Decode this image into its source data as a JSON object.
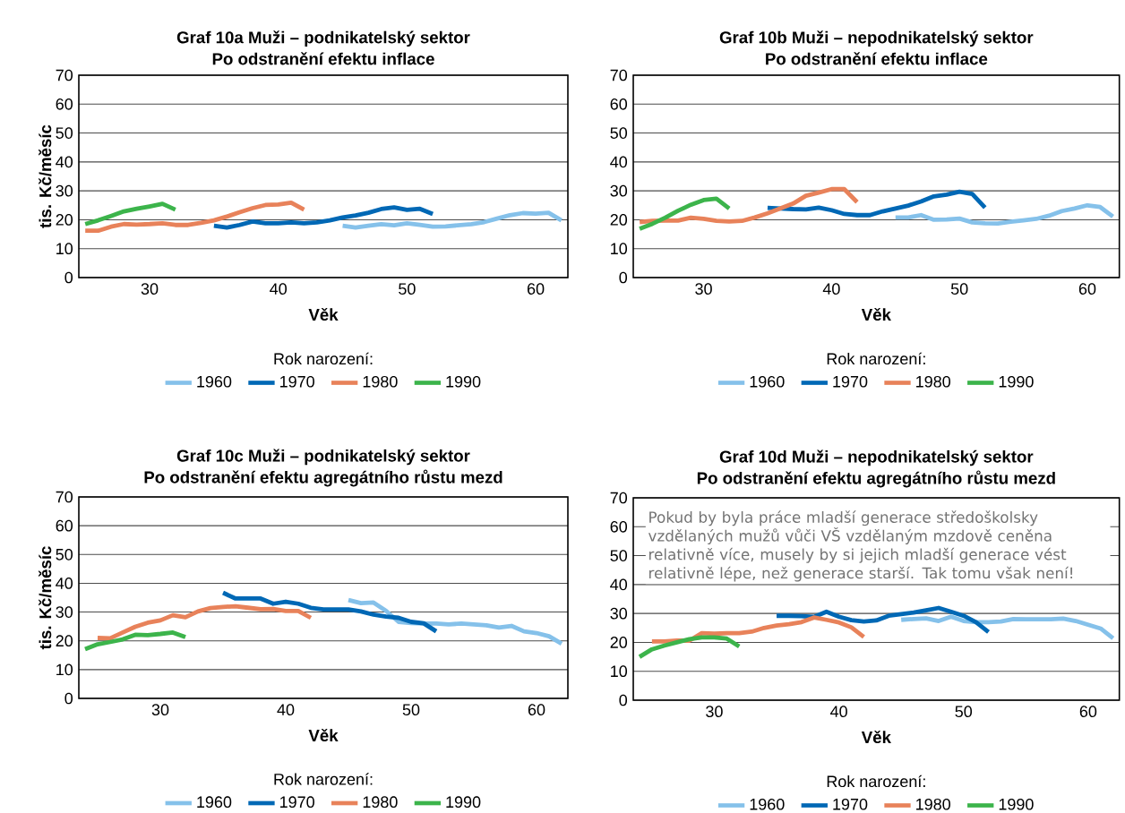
{
  "chart_data": [
    {
      "type": "line",
      "title": "Graf 10a  Muži – podnikatelský sektor",
      "subtitle": "Po odstranění efektu inflace",
      "xlabel": "Věk",
      "ylabel": "tis. Kč/měsíc",
      "legend_title": "Rok narození:",
      "legend": "bottom",
      "grid": "y",
      "xlim": [
        24.5,
        62.5
      ],
      "xticks": [
        30,
        40,
        50,
        60
      ],
      "ylim": [
        0,
        70
      ],
      "yticks": [
        0,
        10,
        20,
        30,
        40,
        50,
        60,
        70
      ],
      "series": [
        {
          "name": "1960",
          "color": "#85c1ea",
          "x": [
            45,
            46,
            47,
            48,
            49,
            50,
            51,
            52,
            53,
            54,
            55,
            56,
            57,
            58,
            59,
            60,
            61,
            62
          ],
          "values": [
            17.9,
            17.3,
            17.9,
            18.5,
            18.1,
            18.8,
            18.2,
            17.6,
            17.7,
            18.1,
            18.5,
            19.2,
            20.4,
            21.6,
            22.3,
            22.1,
            22.4,
            19.8
          ]
        },
        {
          "name": "1970",
          "color": "#0068b5",
          "x": [
            35,
            36,
            37,
            38,
            39,
            40,
            41,
            42,
            43,
            44,
            45,
            46,
            47,
            48,
            49,
            50,
            51,
            52
          ],
          "values": [
            17.9,
            17.3,
            18.2,
            19.4,
            18.8,
            18.8,
            19.1,
            18.8,
            19.1,
            19.8,
            20.8,
            21.5,
            22.4,
            23.7,
            24.3,
            23.4,
            23.8,
            22.0
          ]
        },
        {
          "name": "1980",
          "color": "#e8825a",
          "x": [
            25,
            26,
            27,
            28,
            29,
            30,
            31,
            32,
            33,
            34,
            35,
            36,
            37,
            38,
            39,
            40,
            41,
            42
          ],
          "values": [
            16.2,
            16.2,
            17.6,
            18.5,
            18.3,
            18.5,
            18.8,
            18.2,
            18.2,
            18.9,
            19.8,
            21.1,
            22.6,
            24.0,
            25.1,
            25.3,
            25.9,
            23.5
          ]
        },
        {
          "name": "1990",
          "color": "#3cb44b",
          "x": [
            25,
            26,
            27,
            28,
            29,
            30,
            31,
            32
          ],
          "values": [
            18.5,
            19.8,
            21.3,
            22.9,
            23.8,
            24.6,
            25.5,
            23.5
          ]
        }
      ]
    },
    {
      "type": "line",
      "title": "Graf 10b  Muži – nepodnikatelský sektor",
      "subtitle": "Po odstranění efektu inflace",
      "xlabel": "Věk",
      "legend_title": "Rok narození:",
      "legend": "bottom",
      "grid": "y",
      "xlim": [
        24.5,
        62.5
      ],
      "xticks": [
        30,
        40,
        50,
        60
      ],
      "ylim": [
        0,
        70
      ],
      "yticks": [
        0,
        10,
        20,
        30,
        40,
        50,
        60,
        70
      ],
      "series": [
        {
          "name": "1960",
          "color": "#85c1ea",
          "x": [
            45,
            46,
            47,
            48,
            49,
            50,
            51,
            52,
            53,
            54,
            55,
            56,
            57,
            58,
            59,
            60,
            61,
            62
          ],
          "values": [
            20.8,
            20.8,
            21.6,
            20.0,
            20.1,
            20.4,
            19.1,
            18.8,
            18.7,
            19.3,
            19.8,
            20.3,
            21.4,
            23.0,
            23.9,
            25.0,
            24.4,
            21.1
          ]
        },
        {
          "name": "1970",
          "color": "#0068b5",
          "x": [
            35,
            36,
            37,
            38,
            39,
            40,
            41,
            42,
            43,
            44,
            45,
            46,
            47,
            48,
            49,
            50,
            51,
            52
          ],
          "values": [
            24.1,
            23.9,
            23.7,
            23.6,
            24.2,
            23.3,
            22.0,
            21.6,
            21.6,
            22.9,
            23.9,
            24.9,
            26.3,
            28.1,
            28.7,
            29.7,
            28.9,
            24.2
          ]
        },
        {
          "name": "1980",
          "color": "#e8825a",
          "x": [
            25,
            26,
            27,
            28,
            29,
            30,
            31,
            32,
            33,
            34,
            35,
            36,
            37,
            38,
            39,
            40,
            41,
            42
          ],
          "values": [
            19.2,
            19.6,
            19.7,
            19.7,
            20.7,
            20.3,
            19.6,
            19.4,
            19.6,
            20.8,
            22.2,
            23.9,
            25.6,
            28.3,
            29.4,
            30.6,
            30.6,
            26.1
          ]
        },
        {
          "name": "1990",
          "color": "#3cb44b",
          "x": [
            25,
            26,
            27,
            28,
            29,
            30,
            31,
            32
          ],
          "values": [
            16.9,
            18.6,
            20.7,
            23.1,
            25.2,
            26.8,
            27.3,
            23.9
          ]
        }
      ]
    },
    {
      "type": "line",
      "title": "Graf 10c  Muži – podnikatelský sektor",
      "subtitle": "Po odstranění efektu agregátního růstu mezd",
      "xlabel": "Věk",
      "ylabel": "tis. Kč/měsíc",
      "legend_title": "Rok narození:",
      "legend": "bottom",
      "grid": "y",
      "xlim": [
        23.5,
        62.5
      ],
      "xticks": [
        30,
        40,
        50,
        60
      ],
      "ylim": [
        0,
        70
      ],
      "yticks": [
        0,
        10,
        20,
        30,
        40,
        50,
        60,
        70
      ],
      "series": [
        {
          "name": "1960",
          "color": "#85c1ea",
          "x": [
            45,
            46,
            47,
            48,
            49,
            50,
            51,
            52,
            53,
            54,
            55,
            56,
            57,
            58,
            59,
            60,
            61,
            62
          ],
          "values": [
            34.2,
            33.1,
            33.3,
            30.4,
            26.6,
            26.2,
            26.0,
            26.0,
            25.7,
            26.0,
            25.7,
            25.4,
            24.6,
            25.2,
            23.3,
            22.7,
            21.6,
            19.0
          ]
        },
        {
          "name": "1970",
          "color": "#0068b5",
          "x": [
            35,
            36,
            37,
            38,
            39,
            40,
            41,
            42,
            43,
            44,
            45,
            46,
            47,
            48,
            49,
            50,
            51,
            52
          ],
          "values": [
            36.7,
            34.7,
            34.7,
            34.7,
            32.9,
            33.6,
            32.9,
            31.5,
            30.9,
            30.9,
            30.9,
            30.2,
            29.1,
            28.4,
            28.0,
            26.6,
            26.1,
            23.3
          ]
        },
        {
          "name": "1980",
          "color": "#e8825a",
          "x": [
            25,
            26,
            27,
            28,
            29,
            30,
            31,
            32,
            33,
            34,
            35,
            36,
            37,
            38,
            39,
            40,
            41,
            42
          ],
          "values": [
            21.0,
            20.9,
            22.9,
            24.9,
            26.3,
            27.1,
            28.9,
            28.2,
            30.2,
            31.4,
            31.8,
            32.0,
            31.5,
            31.0,
            31.1,
            30.4,
            30.4,
            28.0
          ]
        },
        {
          "name": "1990",
          "color": "#3cb44b",
          "x": [
            24,
            25,
            26,
            27,
            28,
            29,
            30,
            31,
            32
          ],
          "values": [
            17.1,
            18.8,
            19.6,
            20.5,
            22.1,
            22.0,
            22.4,
            22.9,
            21.3
          ]
        }
      ]
    },
    {
      "type": "line",
      "title": "Graf 10d  Muži – nepodnikatelský sektor",
      "subtitle": "Po odstranění efektu agregátního růstu mezd",
      "xlabel": "Věk",
      "legend_title": "Rok narození:",
      "legend": "bottom",
      "grid": "y",
      "xlim": [
        23.5,
        62.5
      ],
      "xticks": [
        30,
        40,
        50,
        60
      ],
      "ylim": [
        0,
        70
      ],
      "yticks": [
        0,
        10,
        20,
        30,
        40,
        50,
        60,
        70
      ],
      "annotations": [
        "Pokud by byla práce mladší generace středoškolsky vzdělaných mužů vůči VŠ vzdělaným mzdově ceněna relativně více, musely by si jejich mladší generace vést relativně lépe, než generace starší. Tak tomu však není!"
      ],
      "series": [
        {
          "name": "1960",
          "color": "#85c1ea",
          "x": [
            45,
            46,
            47,
            48,
            49,
            50,
            51,
            52,
            53,
            54,
            55,
            56,
            57,
            58,
            59,
            60,
            61,
            62
          ],
          "values": [
            27.8,
            28.1,
            28.3,
            27.4,
            28.9,
            27.4,
            27.0,
            27.0,
            27.2,
            28.1,
            28.0,
            28.0,
            28.0,
            28.2,
            27.4,
            26.1,
            24.8,
            21.4
          ]
        },
        {
          "name": "1970",
          "color": "#0068b5",
          "x": [
            35,
            36,
            37,
            38,
            39,
            40,
            41,
            42,
            43,
            44,
            45,
            46,
            47,
            48,
            49,
            50,
            51,
            52
          ],
          "values": [
            29.2,
            29.2,
            29.1,
            28.8,
            30.6,
            28.9,
            27.7,
            27.2,
            27.6,
            29.2,
            29.8,
            30.3,
            31.1,
            31.9,
            30.6,
            29.2,
            27.0,
            23.6
          ]
        },
        {
          "name": "1980",
          "color": "#e8825a",
          "x": [
            25,
            26,
            27,
            28,
            29,
            30,
            31,
            32,
            33,
            34,
            35,
            36,
            37,
            38,
            39,
            40,
            41,
            42
          ],
          "values": [
            20.3,
            20.3,
            20.6,
            20.6,
            23.2,
            23.0,
            23.2,
            23.2,
            23.7,
            25.0,
            25.8,
            26.3,
            27.0,
            28.6,
            27.8,
            26.9,
            25.2,
            21.9
          ]
        },
        {
          "name": "1990",
          "color": "#3cb44b",
          "x": [
            24,
            25,
            26,
            27,
            28,
            29,
            30,
            31,
            32
          ],
          "values": [
            15.0,
            17.6,
            18.9,
            20.0,
            21.1,
            21.7,
            21.7,
            21.3,
            18.6
          ]
        }
      ]
    }
  ]
}
